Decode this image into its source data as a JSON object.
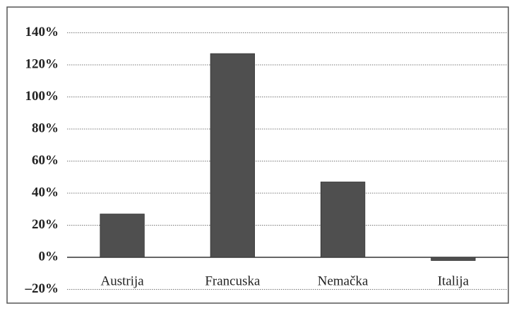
{
  "chart_data": {
    "type": "bar",
    "categories": [
      "Austrija",
      "Francuska",
      "Nemačka",
      "Italija"
    ],
    "values": [
      27,
      127,
      47,
      -2
    ],
    "color": "#4f4f4f",
    "ylim": [
      -20,
      140
    ],
    "yticks": [
      {
        "value": -20,
        "label": "–20%"
      },
      {
        "value": 0,
        "label": "0%"
      },
      {
        "value": 20,
        "label": "20%"
      },
      {
        "value": 40,
        "label": "40%"
      },
      {
        "value": 60,
        "label": "60%"
      },
      {
        "value": 80,
        "label": "80%"
      },
      {
        "value": 100,
        "label": "100%"
      },
      {
        "value": 120,
        "label": "120%"
      },
      {
        "value": 140,
        "label": "140%"
      }
    ],
    "grid": true
  }
}
